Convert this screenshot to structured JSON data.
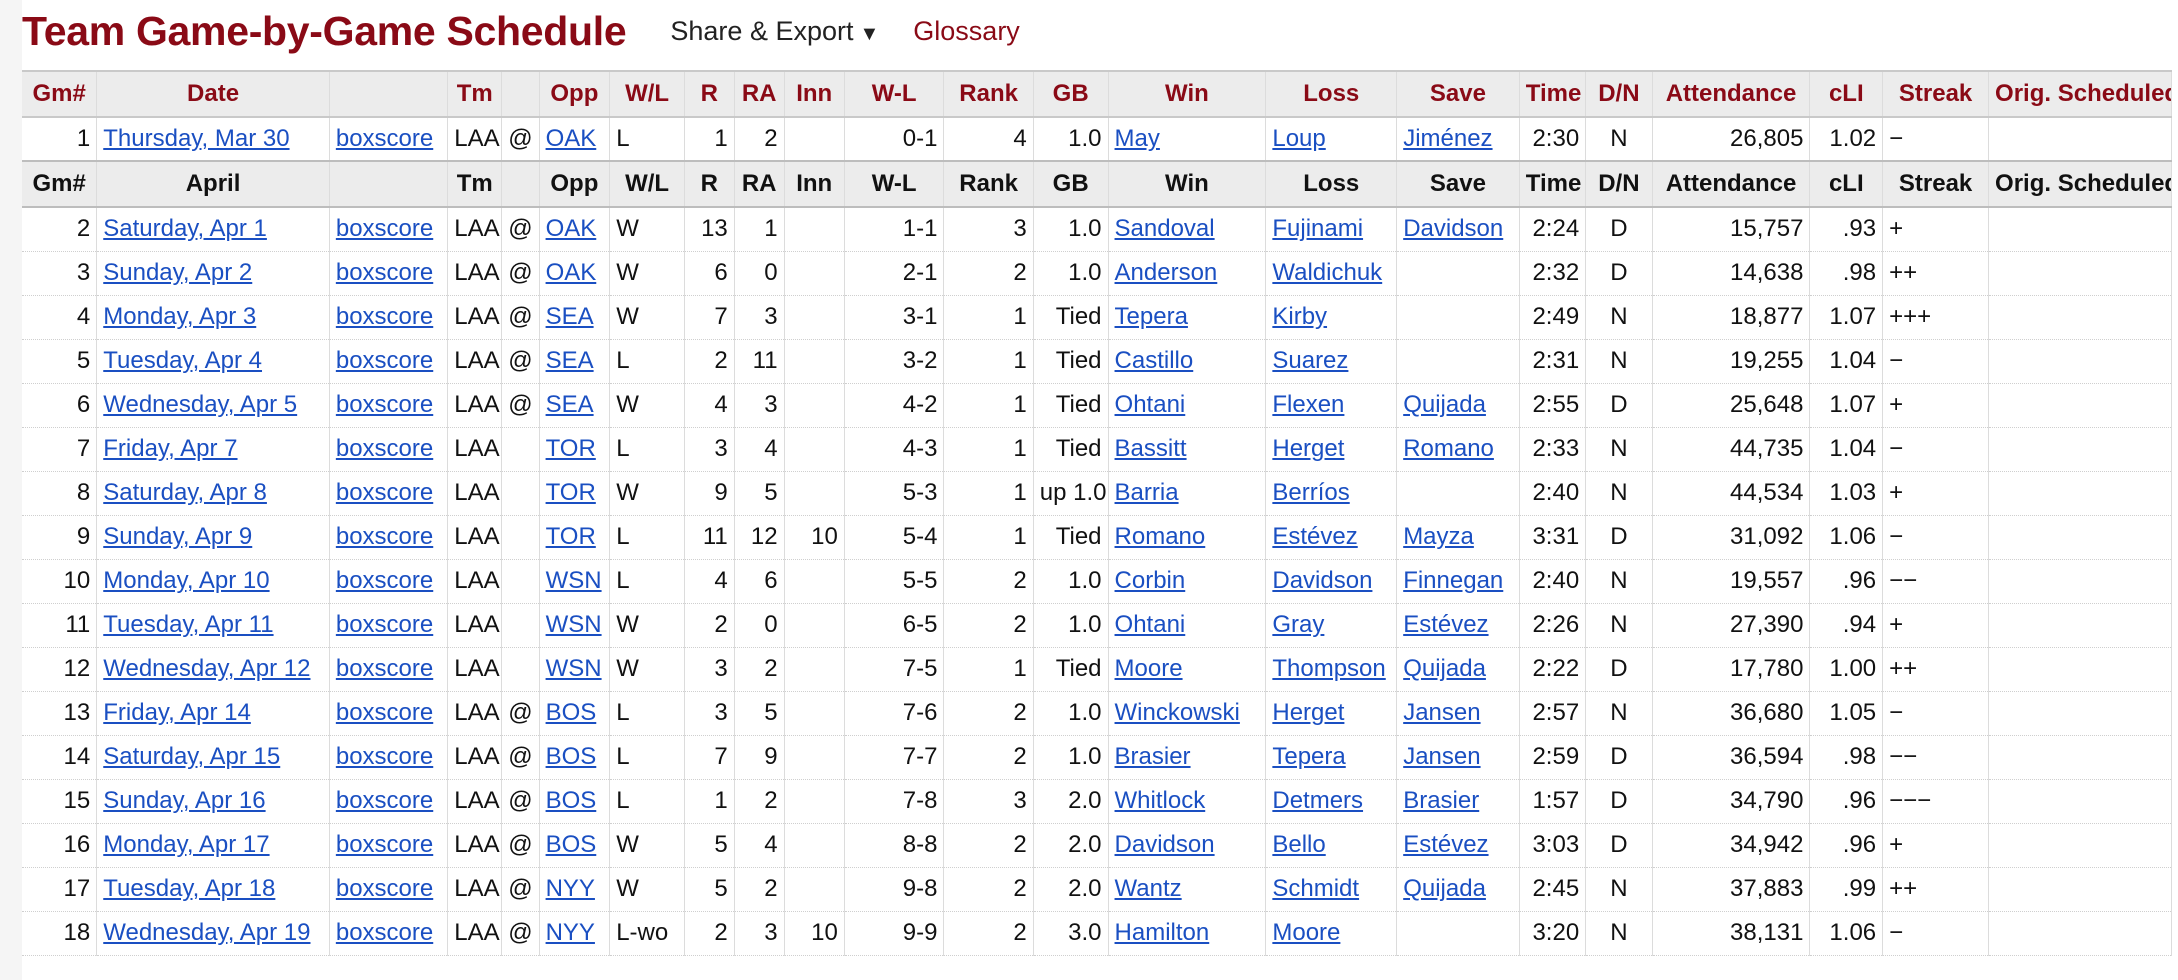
{
  "header": {
    "title": "Team Game-by-Game Schedule",
    "share_label": "Share & Export",
    "share_caret": "▼",
    "glossary_label": "Glossary"
  },
  "columns": [
    "Gm#",
    "Date",
    "",
    "Tm",
    "",
    "Opp",
    "W/L",
    "R",
    "RA",
    "Inn",
    "W-L",
    "Rank",
    "GB",
    "Win",
    "Loss",
    "Save",
    "Time",
    "D/N",
    "Attendance",
    "cLI",
    "Streak",
    "Orig. Scheduled"
  ],
  "month_header": {
    "gm": "Gm#",
    "month": "April",
    "boxscore": "",
    "tm": "Tm",
    "at": "",
    "opp": "Opp",
    "wl": "W/L",
    "r": "R",
    "ra": "RA",
    "inn": "Inn",
    "wlrec": "W-L",
    "rank": "Rank",
    "gb": "GB",
    "win": "Win",
    "loss": "Loss",
    "save": "Save",
    "time": "Time",
    "dn": "D/N",
    "att": "Attendance",
    "cli": "cLI",
    "streak": "Streak",
    "orig": "Orig. Scheduled"
  },
  "march_rows": [
    {
      "gm": "1",
      "date": "Thursday, Mar 30",
      "boxscore": "boxscore",
      "tm": "LAA",
      "at": "@",
      "opp": "OAK",
      "wl": "L",
      "r": "1",
      "ra": "2",
      "inn": "",
      "wlrec": "0-1",
      "rank": "4",
      "gb": "1.0",
      "win": "May",
      "loss": "Loup",
      "save": "Jiménez",
      "time": "2:30",
      "dn": "N",
      "att": "26,805",
      "cli": "1.02",
      "streak": "−",
      "orig": ""
    }
  ],
  "april_rows": [
    {
      "gm": "2",
      "date": "Saturday, Apr 1",
      "boxscore": "boxscore",
      "tm": "LAA",
      "at": "@",
      "opp": "OAK",
      "wl": "W",
      "r": "13",
      "ra": "1",
      "inn": "",
      "wlrec": "1-1",
      "rank": "3",
      "gb": "1.0",
      "win": "Sandoval",
      "loss": "Fujinami",
      "save": "Davidson",
      "time": "2:24",
      "dn": "D",
      "att": "15,757",
      "cli": ".93",
      "streak": "+",
      "orig": ""
    },
    {
      "gm": "3",
      "date": "Sunday, Apr 2",
      "boxscore": "boxscore",
      "tm": "LAA",
      "at": "@",
      "opp": "OAK",
      "wl": "W",
      "r": "6",
      "ra": "0",
      "inn": "",
      "wlrec": "2-1",
      "rank": "2",
      "gb": "1.0",
      "win": "Anderson",
      "loss": "Waldichuk",
      "save": "",
      "time": "2:32",
      "dn": "D",
      "att": "14,638",
      "cli": ".98",
      "streak": "++",
      "orig": ""
    },
    {
      "gm": "4",
      "date": "Monday, Apr 3",
      "boxscore": "boxscore",
      "tm": "LAA",
      "at": "@",
      "opp": "SEA",
      "wl": "W",
      "r": "7",
      "ra": "3",
      "inn": "",
      "wlrec": "3-1",
      "rank": "1",
      "gb": "Tied",
      "win": "Tepera",
      "loss": "Kirby",
      "save": "",
      "time": "2:49",
      "dn": "N",
      "att": "18,877",
      "cli": "1.07",
      "streak": "+++",
      "orig": ""
    },
    {
      "gm": "5",
      "date": "Tuesday, Apr 4",
      "boxscore": "boxscore",
      "tm": "LAA",
      "at": "@",
      "opp": "SEA",
      "wl": "L",
      "r": "2",
      "ra": "11",
      "inn": "",
      "wlrec": "3-2",
      "rank": "1",
      "gb": "Tied",
      "win": "Castillo",
      "loss": "Suarez",
      "save": "",
      "time": "2:31",
      "dn": "N",
      "att": "19,255",
      "cli": "1.04",
      "streak": "−",
      "orig": ""
    },
    {
      "gm": "6",
      "date": "Wednesday, Apr 5",
      "boxscore": "boxscore",
      "tm": "LAA",
      "at": "@",
      "opp": "SEA",
      "wl": "W",
      "r": "4",
      "ra": "3",
      "inn": "",
      "wlrec": "4-2",
      "rank": "1",
      "gb": "Tied",
      "win": "Ohtani",
      "loss": "Flexen",
      "save": "Quijada",
      "time": "2:55",
      "dn": "D",
      "att": "25,648",
      "cli": "1.07",
      "streak": "+",
      "orig": ""
    },
    {
      "gm": "7",
      "date": "Friday, Apr 7",
      "boxscore": "boxscore",
      "tm": "LAA",
      "at": "",
      "opp": "TOR",
      "wl": "L",
      "r": "3",
      "ra": "4",
      "inn": "",
      "wlrec": "4-3",
      "rank": "1",
      "gb": "Tied",
      "win": "Bassitt",
      "loss": "Herget",
      "save": "Romano",
      "time": "2:33",
      "dn": "N",
      "att": "44,735",
      "cli": "1.04",
      "streak": "−",
      "orig": ""
    },
    {
      "gm": "8",
      "date": "Saturday, Apr 8",
      "boxscore": "boxscore",
      "tm": "LAA",
      "at": "",
      "opp": "TOR",
      "wl": "W",
      "r": "9",
      "ra": "5",
      "inn": "",
      "wlrec": "5-3",
      "rank": "1",
      "gb": "up 1.0",
      "win": "Barria",
      "loss": "Berríos",
      "save": "",
      "time": "2:40",
      "dn": "N",
      "att": "44,534",
      "cli": "1.03",
      "streak": "+",
      "orig": ""
    },
    {
      "gm": "9",
      "date": "Sunday, Apr 9",
      "boxscore": "boxscore",
      "tm": "LAA",
      "at": "",
      "opp": "TOR",
      "wl": "L",
      "r": "11",
      "ra": "12",
      "inn": "10",
      "wlrec": "5-4",
      "rank": "1",
      "gb": "Tied",
      "win": "Romano",
      "loss": "Estévez",
      "save": "Mayza",
      "time": "3:31",
      "dn": "D",
      "att": "31,092",
      "cli": "1.06",
      "streak": "−",
      "orig": ""
    },
    {
      "gm": "10",
      "date": "Monday, Apr 10",
      "boxscore": "boxscore",
      "tm": "LAA",
      "at": "",
      "opp": "WSN",
      "wl": "L",
      "r": "4",
      "ra": "6",
      "inn": "",
      "wlrec": "5-5",
      "rank": "2",
      "gb": "1.0",
      "win": "Corbin",
      "loss": "Davidson",
      "save": "Finnegan",
      "time": "2:40",
      "dn": "N",
      "att": "19,557",
      "cli": ".96",
      "streak": "−−",
      "orig": ""
    },
    {
      "gm": "11",
      "date": "Tuesday, Apr 11",
      "boxscore": "boxscore",
      "tm": "LAA",
      "at": "",
      "opp": "WSN",
      "wl": "W",
      "r": "2",
      "ra": "0",
      "inn": "",
      "wlrec": "6-5",
      "rank": "2",
      "gb": "1.0",
      "win": "Ohtani",
      "loss": "Gray",
      "save": "Estévez",
      "time": "2:26",
      "dn": "N",
      "att": "27,390",
      "cli": ".94",
      "streak": "+",
      "orig": ""
    },
    {
      "gm": "12",
      "date": "Wednesday, Apr 12",
      "boxscore": "boxscore",
      "tm": "LAA",
      "at": "",
      "opp": "WSN",
      "wl": "W",
      "r": "3",
      "ra": "2",
      "inn": "",
      "wlrec": "7-5",
      "rank": "1",
      "gb": "Tied",
      "win": "Moore",
      "loss": "Thompson",
      "save": "Quijada",
      "time": "2:22",
      "dn": "D",
      "att": "17,780",
      "cli": "1.00",
      "streak": "++",
      "orig": ""
    },
    {
      "gm": "13",
      "date": "Friday, Apr 14",
      "boxscore": "boxscore",
      "tm": "LAA",
      "at": "@",
      "opp": "BOS",
      "wl": "L",
      "r": "3",
      "ra": "5",
      "inn": "",
      "wlrec": "7-6",
      "rank": "2",
      "gb": "1.0",
      "win": "Winckowski",
      "loss": "Herget",
      "save": "Jansen",
      "time": "2:57",
      "dn": "N",
      "att": "36,680",
      "cli": "1.05",
      "streak": "−",
      "orig": ""
    },
    {
      "gm": "14",
      "date": "Saturday, Apr 15",
      "boxscore": "boxscore",
      "tm": "LAA",
      "at": "@",
      "opp": "BOS",
      "wl": "L",
      "r": "7",
      "ra": "9",
      "inn": "",
      "wlrec": "7-7",
      "rank": "2",
      "gb": "1.0",
      "win": "Brasier",
      "loss": "Tepera",
      "save": "Jansen",
      "time": "2:59",
      "dn": "D",
      "att": "36,594",
      "cli": ".98",
      "streak": "−−",
      "orig": ""
    },
    {
      "gm": "15",
      "date": "Sunday, Apr 16",
      "boxscore": "boxscore",
      "tm": "LAA",
      "at": "@",
      "opp": "BOS",
      "wl": "L",
      "r": "1",
      "ra": "2",
      "inn": "",
      "wlrec": "7-8",
      "rank": "3",
      "gb": "2.0",
      "win": "Whitlock",
      "loss": "Detmers",
      "save": "Brasier",
      "time": "1:57",
      "dn": "D",
      "att": "34,790",
      "cli": ".96",
      "streak": "−−−",
      "orig": ""
    },
    {
      "gm": "16",
      "date": "Monday, Apr 17",
      "boxscore": "boxscore",
      "tm": "LAA",
      "at": "@",
      "opp": "BOS",
      "wl": "W",
      "r": "5",
      "ra": "4",
      "inn": "",
      "wlrec": "8-8",
      "rank": "2",
      "gb": "2.0",
      "win": "Davidson",
      "loss": "Bello",
      "save": "Estévez",
      "time": "3:03",
      "dn": "D",
      "att": "34,942",
      "cli": ".96",
      "streak": "+",
      "orig": ""
    },
    {
      "gm": "17",
      "date": "Tuesday, Apr 18",
      "boxscore": "boxscore",
      "tm": "LAA",
      "at": "@",
      "opp": "NYY",
      "wl": "W",
      "r": "5",
      "ra": "2",
      "inn": "",
      "wlrec": "9-8",
      "rank": "2",
      "gb": "2.0",
      "win": "Wantz",
      "loss": "Schmidt",
      "save": "Quijada",
      "time": "2:45",
      "dn": "N",
      "att": "37,883",
      "cli": ".99",
      "streak": "++",
      "orig": ""
    },
    {
      "gm": "18",
      "date": "Wednesday, Apr 19",
      "boxscore": "boxscore",
      "tm": "LAA",
      "at": "@",
      "opp": "NYY",
      "wl": "L-wo",
      "r": "2",
      "ra": "3",
      "inn": "10",
      "wlrec": "9-9",
      "rank": "2",
      "gb": "3.0",
      "win": "Hamilton",
      "loss": "Moore",
      "save": "",
      "time": "3:20",
      "dn": "N",
      "att": "38,131",
      "cli": "1.06",
      "streak": "−",
      "orig": ""
    }
  ],
  "colors": {
    "title": "#8a0a16",
    "link": "#1a4fc2",
    "header_bg": "#ececec"
  }
}
